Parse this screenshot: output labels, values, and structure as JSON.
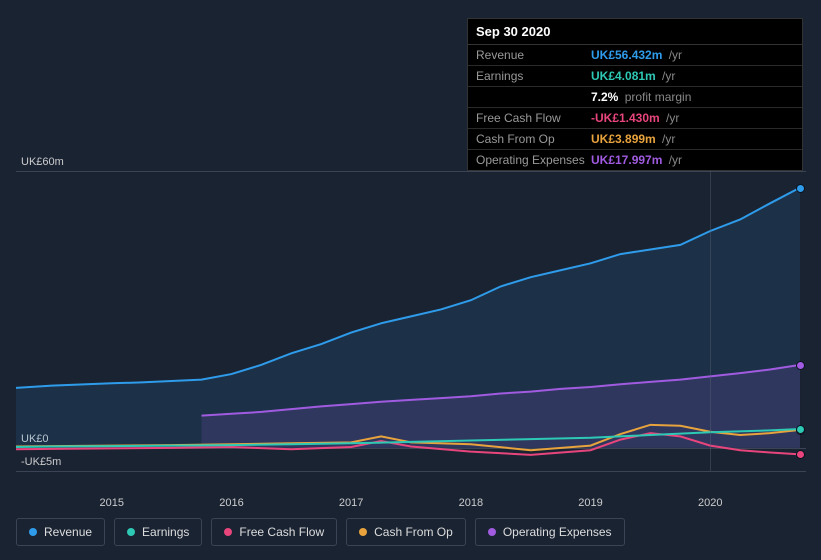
{
  "tooltip": {
    "date": "Sep 30 2020",
    "rows": [
      {
        "label": "Revenue",
        "value": "UK£56.432m",
        "unit": "/yr",
        "color": "#2f9ceb"
      },
      {
        "label": "Earnings",
        "value": "UK£4.081m",
        "unit": "/yr",
        "color": "#2dc9b5"
      },
      {
        "label": "",
        "value": "7.2%",
        "unit": "profit margin",
        "color": "#ffffff"
      },
      {
        "label": "Free Cash Flow",
        "value": "-UK£1.430m",
        "unit": "/yr",
        "color": "#e8457c"
      },
      {
        "label": "Cash From Op",
        "value": "UK£3.899m",
        "unit": "/yr",
        "color": "#e8a33d"
      },
      {
        "label": "Operating Expenses",
        "value": "UK£17.997m",
        "unit": "/yr",
        "color": "#a05be0"
      }
    ]
  },
  "chart": {
    "type": "area_line",
    "background_color": "#1a2332",
    "grid_color": "#3a4454",
    "text_color": "#cccccc",
    "xlim": [
      2014.2,
      2020.8
    ],
    "ylim": [
      -5,
      60
    ],
    "yticks": [
      {
        "v": 60,
        "label": "UK£60m"
      },
      {
        "v": 0,
        "label": "UK£0"
      },
      {
        "v": -5,
        "label": "-UK£5m"
      }
    ],
    "xticks": [
      {
        "v": 2015,
        "label": "2015"
      },
      {
        "v": 2016,
        "label": "2016"
      },
      {
        "v": 2017,
        "label": "2017"
      },
      {
        "v": 2018,
        "label": "2018"
      },
      {
        "v": 2019,
        "label": "2019"
      },
      {
        "v": 2020,
        "label": "2020"
      }
    ],
    "vline_x": 2020.0,
    "marker_x": 2020.75,
    "series": [
      {
        "name": "Revenue",
        "color": "#2f9ceb",
        "fill": true,
        "fill_opacity": 0.12,
        "points": [
          [
            2014.2,
            13
          ],
          [
            2014.5,
            13.5
          ],
          [
            2015.0,
            14
          ],
          [
            2015.25,
            14.2
          ],
          [
            2015.75,
            14.8
          ],
          [
            2016.0,
            16
          ],
          [
            2016.25,
            18
          ],
          [
            2016.5,
            20.5
          ],
          [
            2016.75,
            22.5
          ],
          [
            2017.0,
            25
          ],
          [
            2017.25,
            27
          ],
          [
            2017.5,
            28.5
          ],
          [
            2017.75,
            30
          ],
          [
            2018.0,
            32
          ],
          [
            2018.25,
            35
          ],
          [
            2018.5,
            37
          ],
          [
            2018.75,
            38.5
          ],
          [
            2019.0,
            40
          ],
          [
            2019.25,
            42
          ],
          [
            2019.5,
            43
          ],
          [
            2019.75,
            44
          ],
          [
            2020.0,
            47
          ],
          [
            2020.25,
            49.5
          ],
          [
            2020.5,
            53
          ],
          [
            2020.75,
            56.4
          ]
        ]
      },
      {
        "name": "Operating Expenses",
        "color": "#a05be0",
        "fill": true,
        "fill_opacity": 0.15,
        "points": [
          [
            2015.75,
            7
          ],
          [
            2016.0,
            7.4
          ],
          [
            2016.25,
            7.8
          ],
          [
            2016.5,
            8.4
          ],
          [
            2016.75,
            9
          ],
          [
            2017.0,
            9.5
          ],
          [
            2017.25,
            10
          ],
          [
            2017.5,
            10.4
          ],
          [
            2017.75,
            10.8
          ],
          [
            2018.0,
            11.2
          ],
          [
            2018.25,
            11.8
          ],
          [
            2018.5,
            12.2
          ],
          [
            2018.75,
            12.8
          ],
          [
            2019.0,
            13.2
          ],
          [
            2019.25,
            13.8
          ],
          [
            2019.5,
            14.3
          ],
          [
            2019.75,
            14.8
          ],
          [
            2020.0,
            15.5
          ],
          [
            2020.25,
            16.2
          ],
          [
            2020.5,
            17
          ],
          [
            2020.75,
            18
          ]
        ]
      },
      {
        "name": "Cash From Op",
        "color": "#e8a33d",
        "fill": false,
        "points": [
          [
            2014.2,
            0.3
          ],
          [
            2014.5,
            0.4
          ],
          [
            2015.0,
            0.5
          ],
          [
            2015.5,
            0.6
          ],
          [
            2016.0,
            0.8
          ],
          [
            2016.5,
            1.0
          ],
          [
            2017.0,
            1.2
          ],
          [
            2017.25,
            2.5
          ],
          [
            2017.5,
            1.2
          ],
          [
            2018.0,
            0.8
          ],
          [
            2018.5,
            -0.5
          ],
          [
            2019.0,
            0.5
          ],
          [
            2019.25,
            3
          ],
          [
            2019.5,
            5
          ],
          [
            2019.75,
            4.8
          ],
          [
            2020.0,
            3.5
          ],
          [
            2020.25,
            2.8
          ],
          [
            2020.5,
            3.2
          ],
          [
            2020.75,
            3.9
          ]
        ]
      },
      {
        "name": "Free Cash Flow",
        "color": "#e8457c",
        "fill": false,
        "points": [
          [
            2014.2,
            -0.3
          ],
          [
            2014.5,
            -0.2
          ],
          [
            2015.0,
            -0.1
          ],
          [
            2015.5,
            0
          ],
          [
            2016.0,
            0.2
          ],
          [
            2016.5,
            -0.3
          ],
          [
            2017.0,
            0.2
          ],
          [
            2017.25,
            1.5
          ],
          [
            2017.5,
            0.3
          ],
          [
            2018.0,
            -0.8
          ],
          [
            2018.5,
            -1.5
          ],
          [
            2019.0,
            -0.5
          ],
          [
            2019.25,
            1.8
          ],
          [
            2019.5,
            3.2
          ],
          [
            2019.75,
            2.5
          ],
          [
            2020.0,
            0.5
          ],
          [
            2020.25,
            -0.5
          ],
          [
            2020.5,
            -1.0
          ],
          [
            2020.75,
            -1.4
          ]
        ]
      },
      {
        "name": "Earnings",
        "color": "#2dc9b5",
        "fill": false,
        "points": [
          [
            2014.2,
            0.2
          ],
          [
            2014.5,
            0.3
          ],
          [
            2015.0,
            0.4
          ],
          [
            2015.5,
            0.5
          ],
          [
            2016.0,
            0.6
          ],
          [
            2016.5,
            0.8
          ],
          [
            2017.0,
            1.0
          ],
          [
            2017.5,
            1.3
          ],
          [
            2018.0,
            1.6
          ],
          [
            2018.5,
            1.9
          ],
          [
            2019.0,
            2.2
          ],
          [
            2019.5,
            2.8
          ],
          [
            2020.0,
            3.4
          ],
          [
            2020.5,
            3.8
          ],
          [
            2020.75,
            4.1
          ]
        ]
      }
    ]
  },
  "legend": {
    "items": [
      {
        "label": "Revenue",
        "color": "#2f9ceb"
      },
      {
        "label": "Earnings",
        "color": "#2dc9b5"
      },
      {
        "label": "Free Cash Flow",
        "color": "#e8457c"
      },
      {
        "label": "Cash From Op",
        "color": "#e8a33d"
      },
      {
        "label": "Operating Expenses",
        "color": "#a05be0"
      }
    ]
  }
}
